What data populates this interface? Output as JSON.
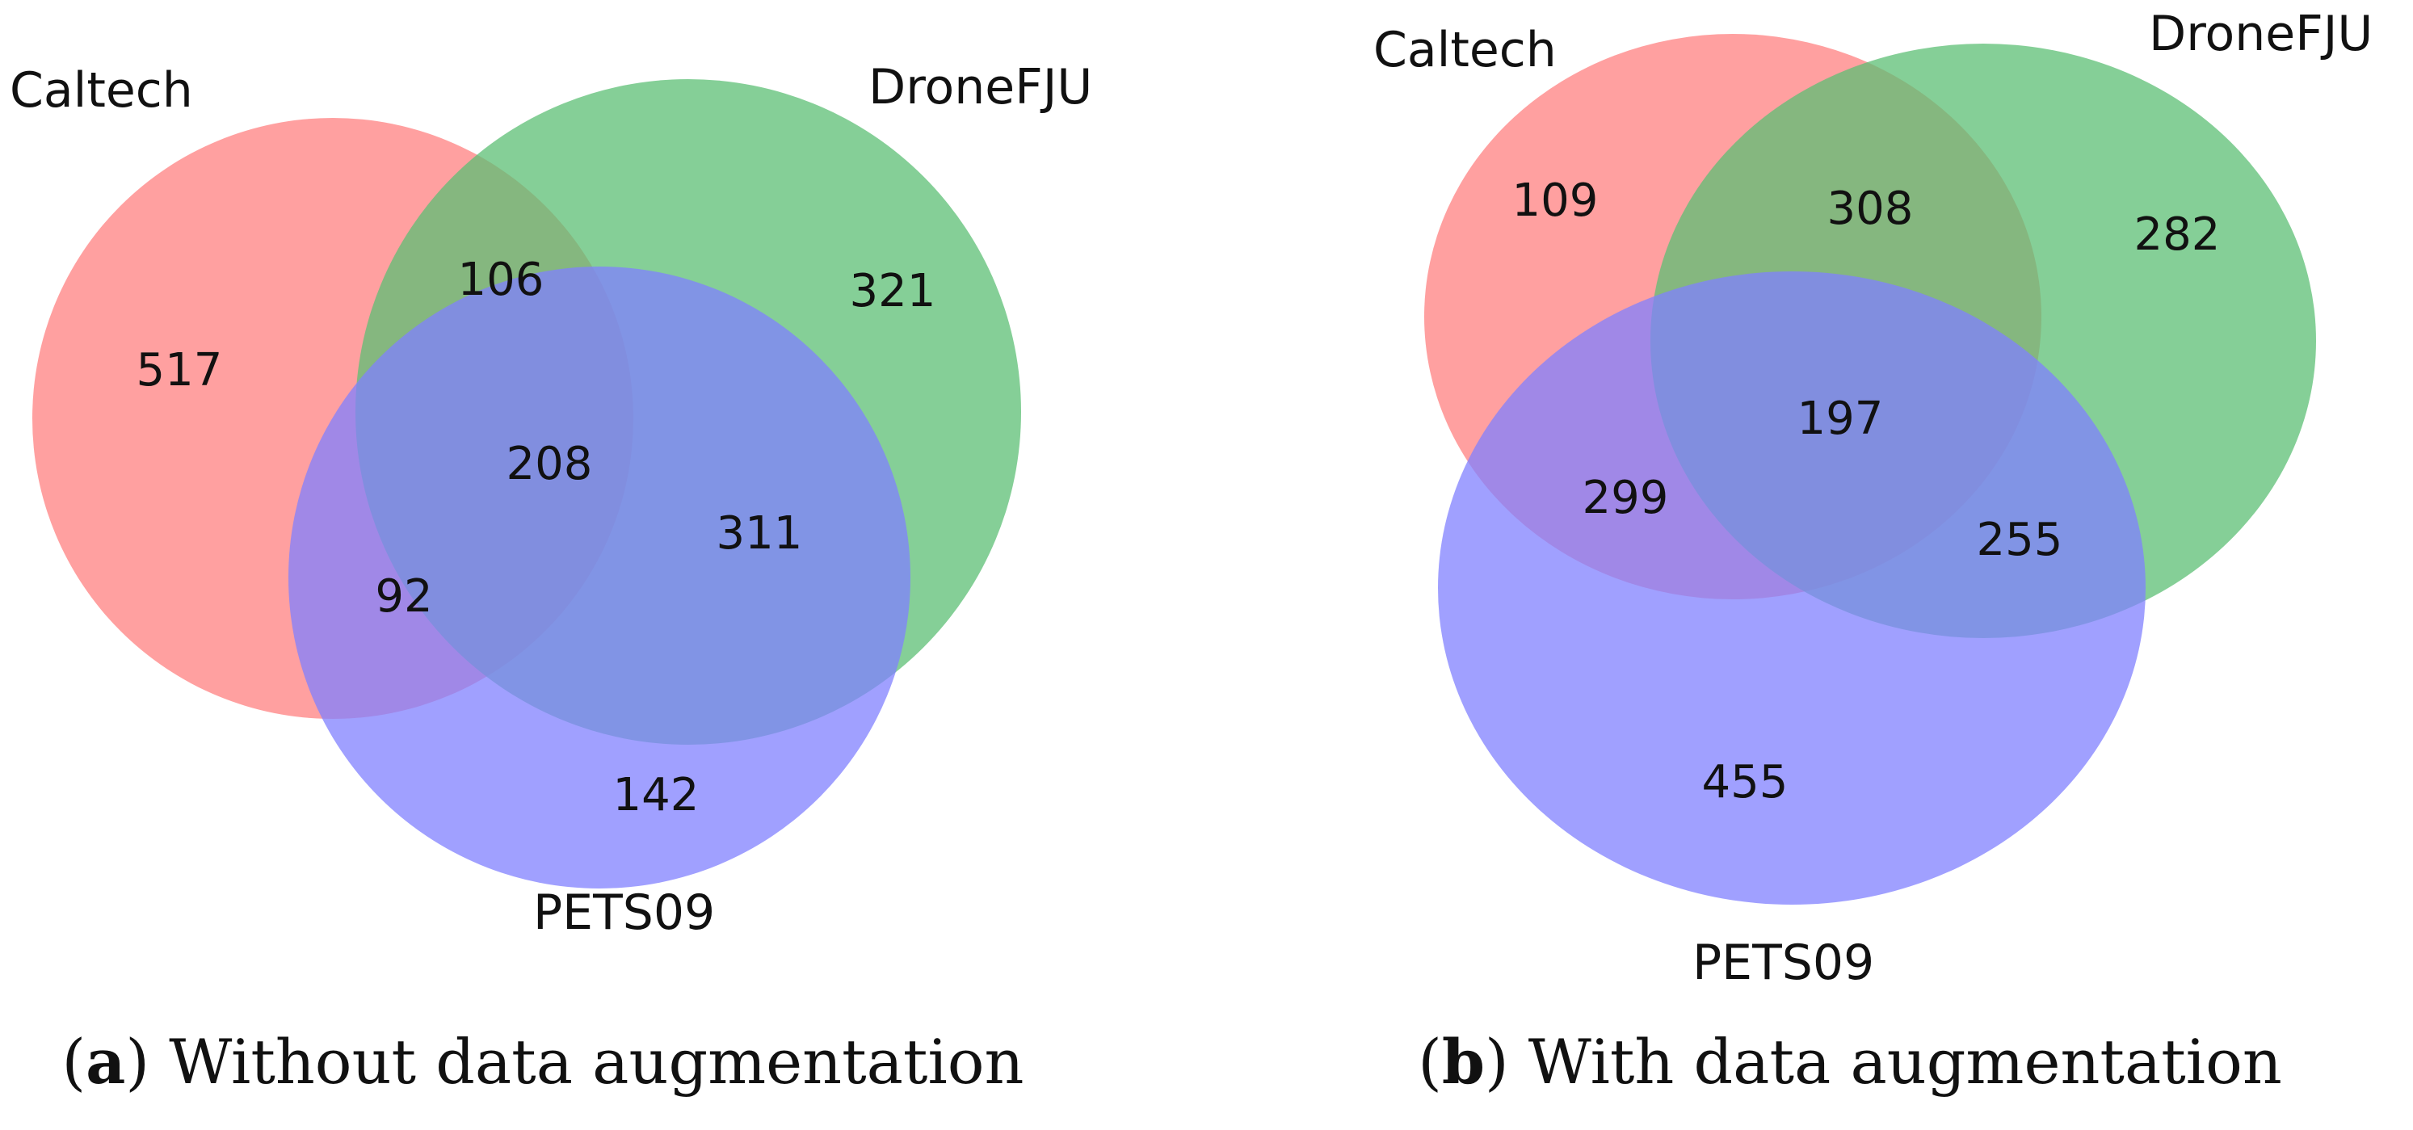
{
  "colors": {
    "caltech": "#ff8080",
    "dronefju": "#5cbf74",
    "pets09": "#8080ff"
  },
  "chart_data": [
    {
      "type": "venn3",
      "panel": "a",
      "caption_letter": "a",
      "caption_text": "Without data augmentation",
      "sets": {
        "caltech": "Caltech",
        "dronefju": "DroneFJU",
        "pets09": "PETS09"
      },
      "regions": {
        "caltech_only": 517,
        "dronefju_only": 321,
        "pets09_only": 142,
        "caltech_dronefju": 106,
        "caltech_pets09": 92,
        "dronefju_pets09": 311,
        "all_three": 208
      }
    },
    {
      "type": "venn3",
      "panel": "b",
      "caption_letter": "b",
      "caption_text": "With data augmentation",
      "sets": {
        "caltech": "Caltech",
        "dronefju": "DroneFJU",
        "pets09": "PETS09"
      },
      "regions": {
        "caltech_only": 109,
        "dronefju_only": 282,
        "pets09_only": 455,
        "caltech_dronefju": 308,
        "caltech_pets09": 299,
        "dronefju_pets09": 255,
        "all_three": 197
      }
    }
  ]
}
